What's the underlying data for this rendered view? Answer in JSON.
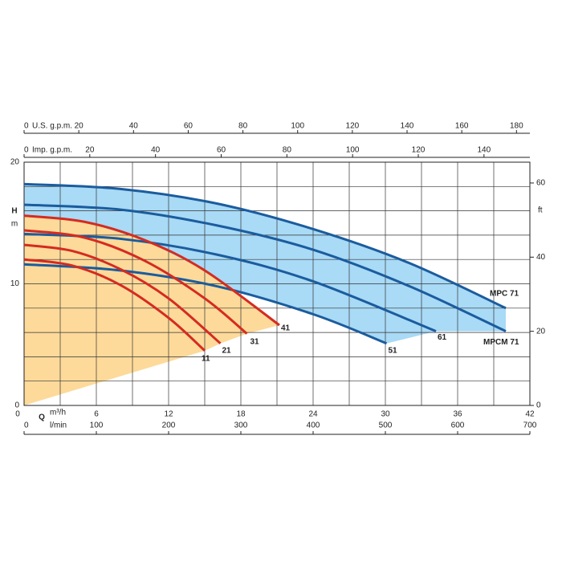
{
  "chart_data": {
    "type": "line",
    "x_label": "Q",
    "x_unit": "m³/h",
    "y_label": "H",
    "y_unit": "m",
    "xlim": [
      0,
      42
    ],
    "xticks": [
      0,
      6,
      12,
      18,
      24,
      30,
      36,
      42
    ],
    "ylim": [
      0,
      20
    ],
    "yticks": [
      0,
      10,
      20
    ],
    "xgrid": [
      0,
      3,
      6,
      9,
      12,
      15,
      18,
      21,
      24,
      27,
      30,
      33,
      36,
      39,
      42
    ],
    "ygrid": [
      0,
      2,
      4,
      6,
      8,
      10,
      12,
      14,
      16,
      18,
      20
    ],
    "y2_label": "ft",
    "y2lim": [
      0,
      65.62
    ],
    "y2ticks": [
      0,
      20,
      40,
      60
    ],
    "top_axes": [
      {
        "label": "U.S. g.p.m.",
        "lim": [
          0,
          184.9
        ],
        "ticks": [
          0,
          20,
          40,
          60,
          80,
          100,
          120,
          140,
          160,
          180
        ]
      },
      {
        "label": "Imp. g.p.m.",
        "lim": [
          0,
          153.97
        ],
        "ticks": [
          0,
          20,
          40,
          60,
          80,
          100,
          120,
          140
        ]
      }
    ],
    "bottom_axis": {
      "label": "l/min",
      "lim": [
        0,
        700
      ],
      "ticks": [
        0,
        100,
        200,
        300,
        400,
        500,
        600,
        700
      ]
    },
    "blue_color": "#1b5c9e",
    "blue_fill": "#a9daf6",
    "red_color": "#d52b21",
    "red_fill": "#fdda9a",
    "series": [
      {
        "name": "MPC 71",
        "group": "blue",
        "x": [
          0,
          8,
          16,
          24,
          32,
          40
        ],
        "values": [
          18.2,
          17.8,
          16.6,
          14.5,
          11.7,
          8.0
        ]
      },
      {
        "name": "MPCM 71",
        "group": "blue",
        "x": [
          0,
          8,
          16,
          24,
          32,
          40
        ],
        "values": [
          16.5,
          16.1,
          14.8,
          12.8,
          9.8,
          6.1
        ]
      },
      {
        "name": "61",
        "group": "blue",
        "x": [
          0,
          8,
          16,
          24,
          34.2
        ],
        "values": [
          14.1,
          13.7,
          12.4,
          10.2,
          6.1
        ]
      },
      {
        "name": "51",
        "group": "blue",
        "x": [
          0,
          8,
          16,
          24,
          30.1
        ],
        "values": [
          11.6,
          11.1,
          9.8,
          7.5,
          5.1
        ]
      },
      {
        "name": "41",
        "group": "red",
        "x": [
          0,
          5,
          10,
          15,
          21.2
        ],
        "values": [
          15.6,
          15.1,
          13.6,
          11.1,
          6.6
        ]
      },
      {
        "name": "31",
        "group": "red",
        "x": [
          0,
          5,
          10,
          15,
          18.5
        ],
        "values": [
          14.4,
          13.8,
          11.9,
          8.8,
          5.9
        ]
      },
      {
        "name": "21",
        "group": "red",
        "x": [
          0,
          4,
          8,
          12,
          16.3
        ],
        "values": [
          13.2,
          12.7,
          11.2,
          8.8,
          5.1
        ]
      },
      {
        "name": "11",
        "group": "red",
        "x": [
          0,
          4,
          8,
          12,
          15
        ],
        "values": [
          12.0,
          11.5,
          9.9,
          7.2,
          4.5
        ]
      }
    ]
  }
}
